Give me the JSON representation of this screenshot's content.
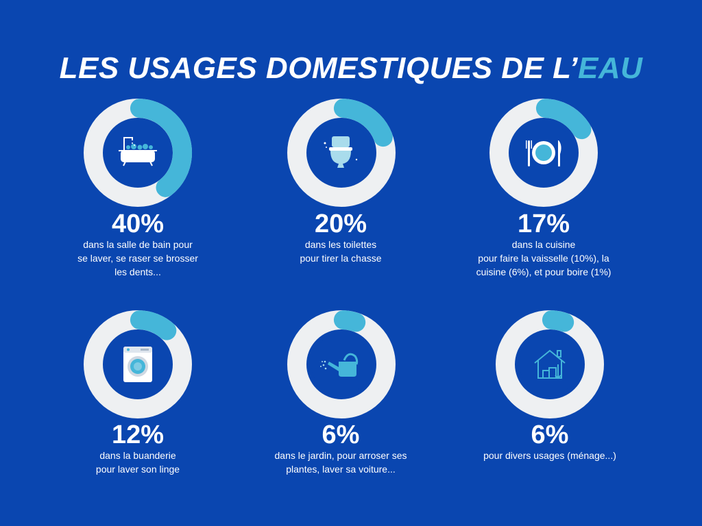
{
  "title": {
    "main": "LES USAGES DOMESTIQUES  DE L’",
    "highlight": "EAU"
  },
  "colors": {
    "background": "#0a46b0",
    "ring": "#eef0f2",
    "accent": "#45b6d9",
    "icon": "#a9dcec"
  },
  "chart_data": {
    "type": "donut",
    "items": [
      {
        "value": 40,
        "label": "40%",
        "text": "dans la salle de bain pour\nse laver, se raser se brosser\nles dents...",
        "icon": "bathtub-icon"
      },
      {
        "value": 20,
        "label": "20%",
        "text": "dans les toilettes\npour tirer la chasse",
        "icon": "toilet-icon"
      },
      {
        "value": 17,
        "label": "17%",
        "text": "dans la cuisine\npour faire la vaisselle (10%), la\ncuisine (6%), et pour boire (1%)",
        "icon": "plate-cutlery-icon"
      },
      {
        "value": 12,
        "label": "12%",
        "text": "dans la buanderie\npour laver son linge",
        "icon": "washing-machine-icon"
      },
      {
        "value": 6,
        "label": "6%",
        "text": "dans le jardin, pour arroser ses\nplantes, laver sa voiture...",
        "icon": "watering-can-icon"
      },
      {
        "value": 6,
        "label": "6%",
        "text": "pour divers usages (ménage...)",
        "icon": "house-cleaning-icon"
      }
    ]
  }
}
